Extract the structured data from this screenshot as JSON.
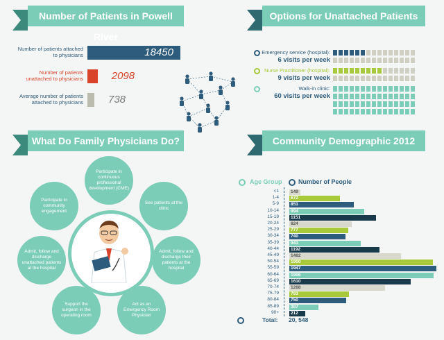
{
  "sections": {
    "patients_title": "Number of Patients in Powell River",
    "options_title": "Options for Unattached Patients",
    "family_title": "What Do Family Physicians Do?",
    "community_title": "Community Demographic 2012"
  },
  "patients": [
    {
      "label": "Number of patients attached to physicians",
      "value": "18450",
      "color": "#2e5c7c",
      "fraction": 1.0
    },
    {
      "label": "Number of patients unattached to physicians",
      "value": "2098",
      "color": "#d8432a",
      "fraction": 0.11
    },
    {
      "label": "Average number of patients attached to physicians",
      "value": "738",
      "color": "#bcbcae",
      "fraction": 0.05
    }
  ],
  "options": [
    {
      "label": "Emergency service (hospital):",
      "sub": "6 visits per week",
      "color": "#2e5c7c",
      "filled": 6,
      "total": 60
    },
    {
      "label": "Nurse Practitioner (hospital):",
      "sub": "9 visits per week",
      "color": "#a8c93a",
      "filled": 9,
      "total": 60
    },
    {
      "label": "Walk-in clinic:",
      "sub": "60 visits per week",
      "color": "#7ccdb7",
      "filled": 60,
      "total": 60
    }
  ],
  "family_roles": [
    "Participate in continuous professional development (CME)",
    "See patients at the clinic",
    "Admit, follow and discharge their patients at the hospital",
    "Act as an Emergency Room Physician",
    "Support the surgeon in the operating room",
    "Admit, follow and discharge unattached patients at the hospital",
    "Participate in community engagement"
  ],
  "chart_data": {
    "type": "bar",
    "orientation": "horizontal",
    "title": "Community Demographic 2012",
    "xlabel": "Number of People",
    "ylabel": "Age Group",
    "categories": [
      "<1",
      "1-4",
      "5-9",
      "10-14",
      "15-19",
      "20-24",
      "25-29",
      "30-34",
      "35-39",
      "40-44",
      "45-49",
      "50-54",
      "55-59",
      "60-64",
      "65-69",
      "70-74",
      "75-79",
      "80-84",
      "85-89",
      "90+"
    ],
    "values": [
      149,
      672,
      851,
      994,
      1151,
      824,
      777,
      740,
      943,
      1192,
      1482,
      1900,
      1947,
      1906,
      1610,
      1268,
      793,
      750,
      387,
      212
    ],
    "colors": [
      "#d8d8cc",
      "#a8c93a",
      "#2e5c7c",
      "#7ccdb7",
      "#183a4a",
      "#d8d8cc",
      "#a8c93a",
      "#2e5c7c",
      "#7ccdb7",
      "#183a4a",
      "#d8d8cc",
      "#a8c93a",
      "#2e5c7c",
      "#7ccdb7",
      "#183a4a",
      "#d8d8cc",
      "#a8c93a",
      "#2e5c7c",
      "#7ccdb7",
      "#183a4a"
    ],
    "xlim": [
      0,
      1947
    ],
    "total_label": "Total:",
    "total_value": "20, 548"
  }
}
